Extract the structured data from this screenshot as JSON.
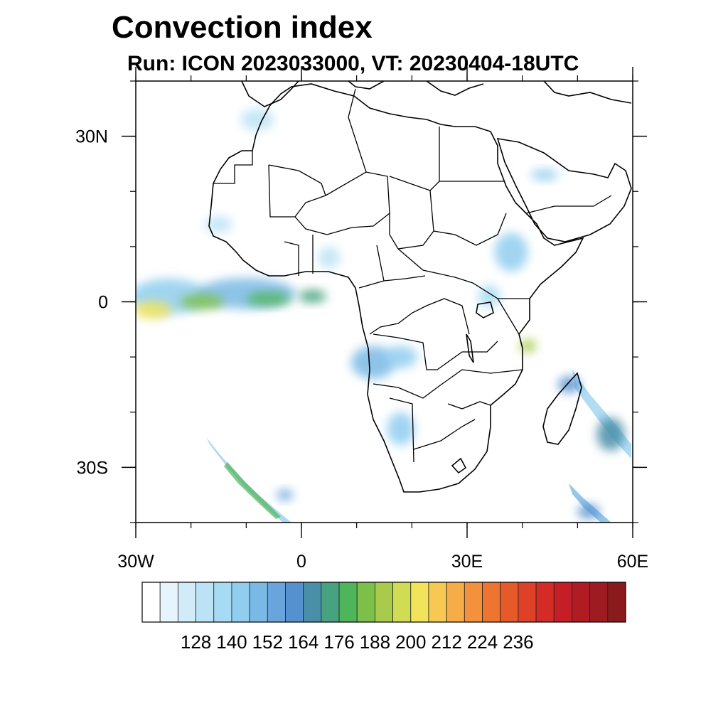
{
  "title": "Convection index",
  "subtitle": "Run: ICON 2023033000,  VT: 20230404-18UTC",
  "map": {
    "projection": "equirectangular",
    "lon_range": [
      -30,
      60
    ],
    "lat_range": [
      -40,
      40
    ],
    "y_tick_labels": [
      {
        "lat": 30,
        "label": "30N"
      },
      {
        "lat": 0,
        "label": "0"
      },
      {
        "lat": -30,
        "label": "30S"
      }
    ],
    "x_tick_labels": [
      {
        "lon": -30,
        "label": "30W"
      },
      {
        "lon": 0,
        "label": "0"
      },
      {
        "lon": 30,
        "label": "30E"
      },
      {
        "lon": 60,
        "label": "60E"
      }
    ],
    "minor_tick_step_deg": 10
  },
  "colorbar": {
    "colors": [
      "#ffffff",
      "#e8f4fb",
      "#d2ebf8",
      "#bce3f5",
      "#a6dbf3",
      "#90cdef",
      "#7ab9e5",
      "#6aa4dc",
      "#5591ce",
      "#4a8fa8",
      "#47a27f",
      "#4fb55a",
      "#7cc04a",
      "#a8cb4c",
      "#cfdc54",
      "#f1e45a",
      "#f8c952",
      "#f6ad48",
      "#f3913c",
      "#ee7530",
      "#e65a29",
      "#df4127",
      "#d42b26",
      "#c51e26",
      "#b01b24",
      "#9d1b21",
      "#8b1a1c"
    ],
    "tick_labels": [
      "128",
      "140",
      "152",
      "164",
      "176",
      "188",
      "200",
      "212",
      "224",
      "236"
    ]
  },
  "field_blobs": [
    {
      "lon": -24,
      "lat": 1,
      "rx": 7,
      "ry": 3.2,
      "level": 5
    },
    {
      "lon": -10,
      "lat": 1.5,
      "rx": 9,
      "ry": 2.8,
      "level": 6
    },
    {
      "lon": -27,
      "lat": -1.5,
      "rx": 3.5,
      "ry": 1.6,
      "level": 15
    },
    {
      "lon": -18,
      "lat": 0,
      "rx": 4,
      "ry": 1.4,
      "level": 12
    },
    {
      "lon": -6,
      "lat": 0.5,
      "rx": 4,
      "ry": 1.2,
      "level": 11
    },
    {
      "lon": 2,
      "lat": 1,
      "rx": 2.5,
      "ry": 1.2,
      "level": 10
    },
    {
      "lon": 13,
      "lat": -11,
      "rx": 4,
      "ry": 3,
      "level": 6
    },
    {
      "lon": 18,
      "lat": -10,
      "rx": 3,
      "ry": 2,
      "level": 5
    },
    {
      "lon": 18,
      "lat": -23,
      "rx": 2.5,
      "ry": 3,
      "level": 5
    },
    {
      "lon": 38,
      "lat": 9,
      "rx": 3,
      "ry": 3.5,
      "level": 5
    },
    {
      "lon": 34,
      "lat": 1,
      "rx": 2,
      "ry": 2,
      "level": 4
    },
    {
      "lon": 41,
      "lat": -8,
      "rx": 1.5,
      "ry": 1.2,
      "level": 13
    },
    {
      "lon": 48.5,
      "lat": -15,
      "rx": 2,
      "ry": 1.5,
      "level": 8
    },
    {
      "lon": 56,
      "lat": -24,
      "rx": 2.5,
      "ry": 3,
      "level": 9
    },
    {
      "lon": -8,
      "lat": 33,
      "rx": 3,
      "ry": 2,
      "level": 3
    },
    {
      "lon": 44,
      "lat": 23,
      "rx": 2.5,
      "ry": 1,
      "level": 5
    },
    {
      "lon": 5,
      "lat": 8,
      "rx": 2,
      "ry": 2,
      "level": 3
    },
    {
      "lon": -15,
      "lat": 14,
      "rx": 2.5,
      "ry": 1.5,
      "level": 3
    },
    {
      "lon": -3,
      "lat": -35,
      "rx": 1.5,
      "ry": 1,
      "level": 7
    },
    {
      "lon": 52,
      "lat": -38,
      "rx": 2,
      "ry": 1.3,
      "level": 8
    }
  ]
}
